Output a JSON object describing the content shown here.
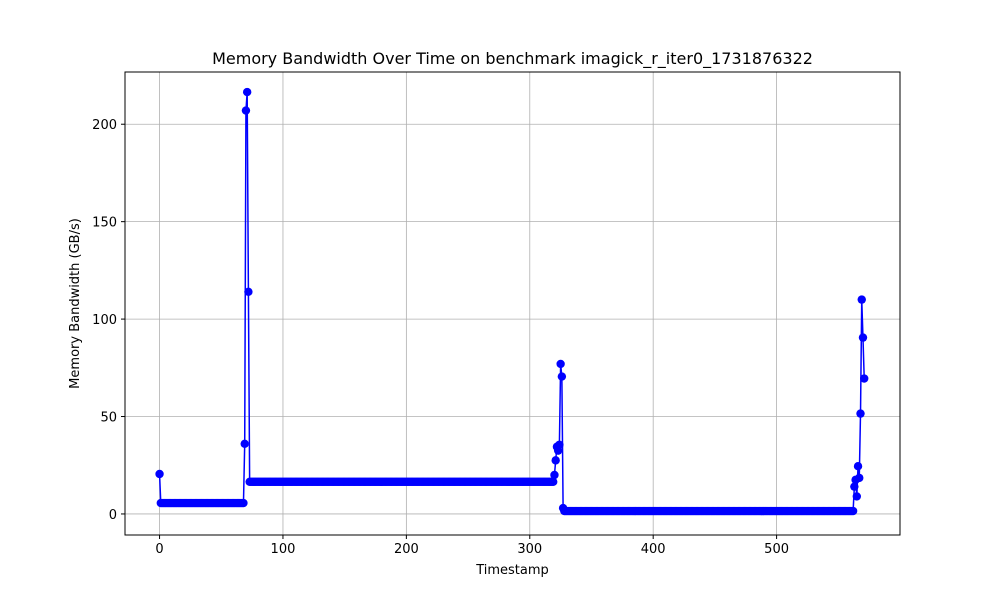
{
  "chart_data": {
    "type": "line",
    "title": "Memory Bandwidth Over Time on benchmark imagick_r_iter0_1731876322",
    "xlabel": "Timestamp",
    "ylabel": "Memory Bandwidth (GB/s)",
    "xlim": [
      -28,
      600
    ],
    "ylim": [
      -10.8,
      226.8
    ],
    "xticks": [
      0,
      100,
      200,
      300,
      400,
      500
    ],
    "yticks": [
      0,
      50,
      100,
      150,
      200
    ],
    "grid": true,
    "legend": null,
    "series": [
      {
        "color": "#0000ff",
        "marker": "circle",
        "segments": [
          {
            "x_start": 0,
            "x_end": 0,
            "y": 20.5
          },
          {
            "x_start": 1,
            "x_end": 68,
            "y": 5.6
          },
          {
            "x_start": 69,
            "x_end": 69,
            "y": 36
          },
          {
            "x_start": 70,
            "x_end": 70,
            "y": 207
          },
          {
            "x_start": 71,
            "x_end": 71,
            "y": 216.5
          },
          {
            "x_start": 72,
            "x_end": 72,
            "y": 114
          },
          {
            "x_start": 73,
            "x_end": 319,
            "y": 16.5
          },
          {
            "x_start": 320,
            "x_end": 320,
            "y": 20
          },
          {
            "x_start": 321,
            "x_end": 321,
            "y": 27.5
          },
          {
            "x_start": 322,
            "x_end": 322,
            "y": 34.5
          },
          {
            "x_start": 323,
            "x_end": 323,
            "y": 32.5
          },
          {
            "x_start": 324,
            "x_end": 324,
            "y": 35.5
          },
          {
            "x_start": 325,
            "x_end": 325,
            "y": 77
          },
          {
            "x_start": 326,
            "x_end": 326,
            "y": 70.5
          },
          {
            "x_start": 327,
            "x_end": 327,
            "y": 3
          },
          {
            "x_start": 328,
            "x_end": 562,
            "y": 1.5
          },
          {
            "x_start": 563,
            "x_end": 563,
            "y": 14
          },
          {
            "x_start": 564,
            "x_end": 564,
            "y": 17.5
          },
          {
            "x_start": 565,
            "x_end": 565,
            "y": 9
          },
          {
            "x_start": 566,
            "x_end": 566,
            "y": 24.5
          },
          {
            "x_start": 567,
            "x_end": 567,
            "y": 18.5
          },
          {
            "x_start": 568,
            "x_end": 568,
            "y": 51.5
          },
          {
            "x_start": 569,
            "x_end": 569,
            "y": 110
          },
          {
            "x_start": 570,
            "x_end": 570,
            "y": 90.5
          },
          {
            "x_start": 571,
            "x_end": 571,
            "y": 69.5
          }
        ]
      }
    ]
  }
}
